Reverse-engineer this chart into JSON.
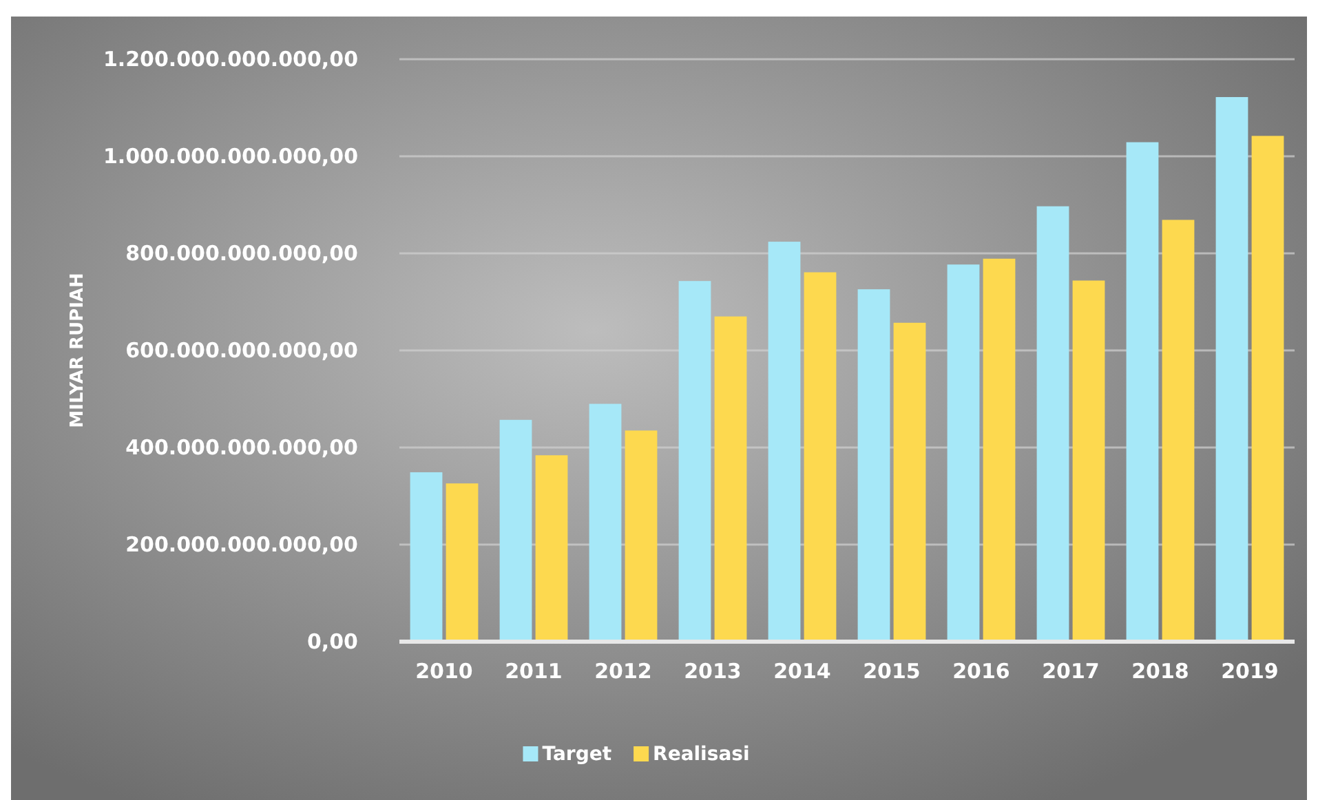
{
  "chart_data": {
    "type": "bar",
    "ylabel": "MILYAR RUPIAH",
    "categories": [
      "2010",
      "2011",
      "2012",
      "2013",
      "2014",
      "2015",
      "2016",
      "2017",
      "2018",
      "2019"
    ],
    "series": [
      {
        "name": "Target",
        "color": "#a6e8f8",
        "values": [
          349000000000,
          457000000000,
          490000000000,
          743000000000,
          824000000000,
          726000000000,
          777000000000,
          897000000000,
          1029000000000,
          1122000000000
        ]
      },
      {
        "name": "Realisasi",
        "color": "#fdd94f",
        "values": [
          326000000000,
          384000000000,
          435000000000,
          670000000000,
          761000000000,
          657000000000,
          789000000000,
          744000000000,
          869000000000,
          1042000000000
        ]
      }
    ],
    "ylim": [
      0,
      1200000000000
    ],
    "yticks": [
      {
        "value": 0,
        "label": "0,00"
      },
      {
        "value": 200000000000,
        "label": "200.000.000.000,00"
      },
      {
        "value": 400000000000,
        "label": "400.000.000.000,00"
      },
      {
        "value": 600000000000,
        "label": "600.000.000.000,00"
      },
      {
        "value": 800000000000,
        "label": "800.000.000.000,00"
      },
      {
        "value": 1000000000000,
        "label": "1.000.000.000.000,00"
      },
      {
        "value": 1200000000000,
        "label": "1.200.000.000.000,00"
      }
    ],
    "grid": "y",
    "legend": "bottom"
  }
}
